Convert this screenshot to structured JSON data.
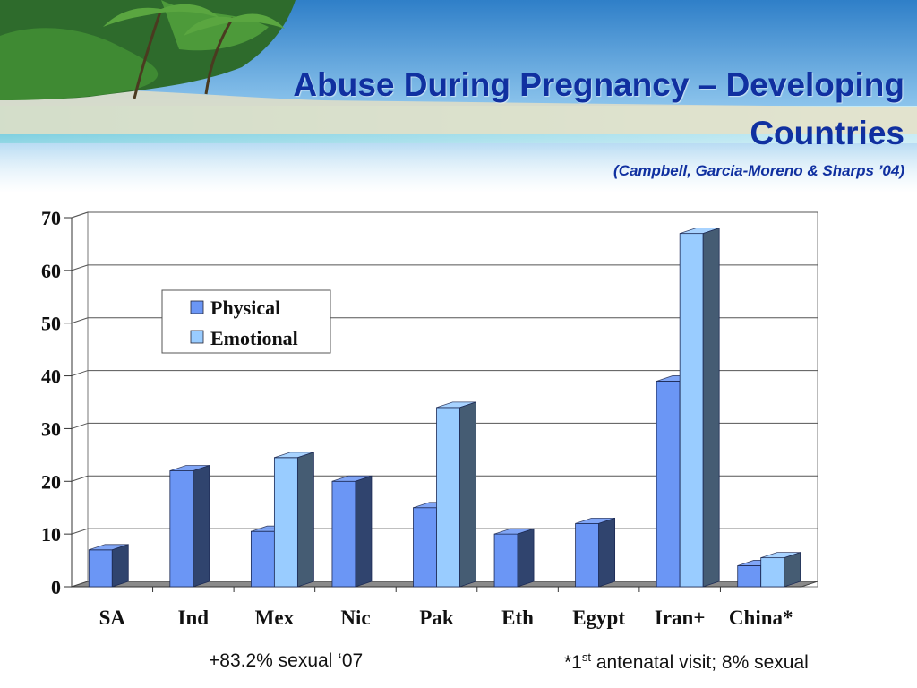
{
  "slide": {
    "title_line1": "Abuse During Pregnancy – Developing",
    "title_line2": "Countries",
    "subtitle": "(Campbell, Garcia-Moreno & Sharps ’04)",
    "footnote_left": "+83.2% sexual ‘07",
    "footnote_right_prefix": "*1",
    "footnote_right_sup": "st",
    "footnote_right_suffix": " antenatal visit; 8% sexual"
  },
  "colors": {
    "title": "#1030a0",
    "physical": "#6b96f5",
    "emotional": "#99ccff"
  },
  "chart_data": {
    "type": "bar",
    "title": "",
    "xlabel": "",
    "ylabel": "",
    "categories": [
      "SA",
      "Ind",
      "Mex",
      "Nic",
      "Pak",
      "Eth",
      "Egypt",
      "Iran+",
      "China*"
    ],
    "series": [
      {
        "name": "Physical",
        "values": [
          7,
          22,
          10.5,
          20,
          15,
          10,
          12,
          39,
          4
        ]
      },
      {
        "name": "Emotional",
        "values": [
          null,
          null,
          24.5,
          null,
          34,
          null,
          null,
          67,
          5.5
        ]
      }
    ],
    "ylim": [
      0,
      70
    ],
    "yticks": [
      "0",
      "10",
      "20",
      "30",
      "40",
      "50",
      "60",
      "70"
    ],
    "grid": true,
    "legend": "top-left inside"
  }
}
